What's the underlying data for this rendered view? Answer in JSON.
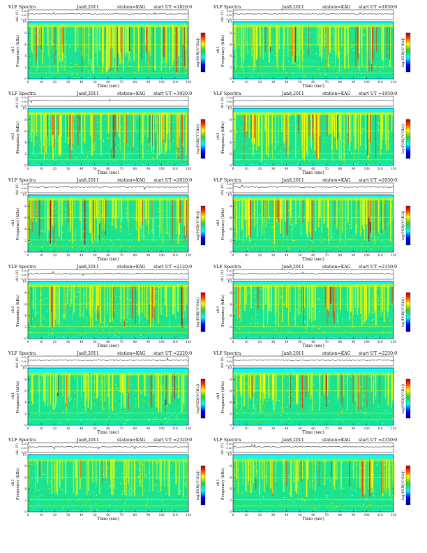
{
  "page": {
    "colors": {
      "background_low": "#00ffff",
      "background_mid": "#33cc33",
      "mid_high": "#ffff00",
      "high": "#ff3300",
      "peak": "#aa0000",
      "trace": "#000000"
    }
  },
  "chart_data": [
    {
      "type": "heatmap",
      "title": "VLF Spectra",
      "date": "Jan8,2011",
      "station": "station=KAG",
      "start_ut": "start UT =1820:0",
      "xlabel": "Time (sec)",
      "ylabel": "Frequency (kHz)",
      "ylabel_ch": "ch1",
      "trace_label": "ch1 (V)",
      "trace_ticks": [
        "0.20",
        "0.00",
        "-0.20"
      ],
      "colorbar_label": "log(PSD[(V²/Hz])",
      "xlim": [
        0,
        120
      ],
      "ylim": [
        0,
        10
      ],
      "x_ticks": [
        "0",
        "10",
        "20",
        "30",
        "40",
        "50",
        "60",
        "70",
        "80",
        "90",
        "100",
        "110",
        "120"
      ],
      "y_ticks": [
        "0",
        "2",
        "4",
        "6",
        "8",
        "10"
      ],
      "band_upper_khz": 9.5,
      "intensity": 0.8
    },
    {
      "type": "heatmap",
      "title": "VLF Spectra",
      "date": "Jan8,2011",
      "station": "station=KAG",
      "start_ut": "start UT =1850:0",
      "xlabel": "Time (sec)",
      "ylabel": "Frequency (kHz)",
      "ylabel_ch": "ch1",
      "trace_label": "ch1 (V)",
      "trace_ticks": [
        "0.20",
        "0.00",
        "-0.20"
      ],
      "colorbar_label": "log(PSD[(V²/Hz])",
      "xlim": [
        0,
        120
      ],
      "ylim": [
        0,
        10
      ],
      "x_ticks": [
        "0",
        "10",
        "20",
        "30",
        "40",
        "50",
        "60",
        "70",
        "80",
        "90",
        "100",
        "110",
        "120"
      ],
      "y_ticks": [
        "0",
        "2",
        "4",
        "6",
        "8",
        "10"
      ],
      "band_upper_khz": 9.5,
      "intensity": 0.8
    },
    {
      "type": "heatmap",
      "title": "VLF Spectra",
      "date": "Jan8,2011",
      "station": "station=KAG",
      "start_ut": "start UT =1920:0",
      "xlabel": "Time (sec)",
      "ylabel": "Frequency (kHz)",
      "ylabel_ch": "ch1",
      "trace_label": "ch1 (V)",
      "trace_ticks": [
        "0.20",
        "0.00",
        "-0.20"
      ],
      "colorbar_label": "log(PSD[(V²/Hz])",
      "xlim": [
        0,
        120
      ],
      "ylim": [
        0,
        10
      ],
      "x_ticks": [
        "0",
        "10",
        "20",
        "30",
        "40",
        "50",
        "60",
        "70",
        "80",
        "90",
        "100",
        "110",
        "120"
      ],
      "y_ticks": [
        "0",
        "2",
        "4",
        "6",
        "8",
        "10"
      ],
      "band_upper_khz": 9.3,
      "intensity": 0.85
    },
    {
      "type": "heatmap",
      "title": "VLF Spectra",
      "date": "Jan8,2011",
      "station": "station=KAG",
      "start_ut": "start UT =1950:0",
      "xlabel": "Time (sec)",
      "ylabel": "Frequency (kHz)",
      "ylabel_ch": "ch1",
      "trace_label": "ch1 (V)",
      "trace_ticks": [
        "0.20",
        "0.00",
        "-0.20"
      ],
      "colorbar_label": "log(PSD[(V²/Hz])",
      "xlim": [
        0,
        120
      ],
      "ylim": [
        0,
        10
      ],
      "x_ticks": [
        "0",
        "10",
        "20",
        "30",
        "40",
        "50",
        "60",
        "70",
        "80",
        "90",
        "100",
        "110",
        "120"
      ],
      "y_ticks": [
        "0",
        "2",
        "4",
        "6",
        "8",
        "10"
      ],
      "band_upper_khz": 9.3,
      "intensity": 0.85
    },
    {
      "type": "heatmap",
      "title": "VLF Spectra",
      "date": "Jan8,2011",
      "station": "station=KAG",
      "start_ut": "start UT =2020:0",
      "xlabel": "Time (sec)",
      "ylabel": "Frequency (kHz)",
      "ylabel_ch": "ch1",
      "trace_label": "ch1 (V)",
      "trace_ticks": [
        "0.20",
        "0.00",
        "-0.20"
      ],
      "colorbar_label": "log(PSD[(V²/Hz])",
      "xlim": [
        0,
        120
      ],
      "ylim": [
        0,
        10
      ],
      "x_ticks": [
        "0",
        "10",
        "20",
        "30",
        "40",
        "50",
        "60",
        "70",
        "80",
        "90",
        "100",
        "110",
        "120"
      ],
      "y_ticks": [
        "0",
        "2",
        "4",
        "6",
        "8",
        "10"
      ],
      "band_upper_khz": 9.5,
      "intensity": 0.7
    },
    {
      "type": "heatmap",
      "title": "VLF Spectra",
      "date": "Jan8,2011",
      "station": "station=KAG",
      "start_ut": "start UT =2050:0",
      "xlabel": "Time (sec)",
      "ylabel": "Frequency (kHz)",
      "ylabel_ch": "ch1",
      "trace_label": "ch1 (V)",
      "trace_ticks": [
        "0.20",
        "0.00",
        "-0.20"
      ],
      "colorbar_label": "log(PSD[(V²/Hz])",
      "xlim": [
        0,
        120
      ],
      "ylim": [
        0,
        10
      ],
      "x_ticks": [
        "0",
        "10",
        "20",
        "30",
        "40",
        "50",
        "60",
        "70",
        "80",
        "90",
        "100",
        "110",
        "120"
      ],
      "y_ticks": [
        "0",
        "2",
        "4",
        "6",
        "8",
        "10"
      ],
      "band_upper_khz": 9.5,
      "intensity": 0.7
    },
    {
      "type": "heatmap",
      "title": "VLF Spectra",
      "date": "Jan8,2011",
      "station": "station=KAG",
      "start_ut": "start UT =2120:0",
      "xlabel": "Time (sec)",
      "ylabel": "Frequency (kHz)",
      "ylabel_ch": "ch1",
      "trace_label": "ch1 (V)",
      "trace_ticks": [
        "0.20",
        "0.00",
        "-0.20"
      ],
      "colorbar_label": "log(PSD[(V²/Hz])",
      "xlim": [
        0,
        120
      ],
      "ylim": [
        0,
        10
      ],
      "x_ticks": [
        "0",
        "10",
        "20",
        "30",
        "40",
        "50",
        "60",
        "70",
        "80",
        "90",
        "100",
        "110",
        "120"
      ],
      "y_ticks": [
        "0",
        "2",
        "4",
        "6",
        "8",
        "10"
      ],
      "band_upper_khz": 9.5,
      "intensity": 0.55
    },
    {
      "type": "heatmap",
      "title": "VLF Spectra",
      "date": "Jan8,2011",
      "station": "station=KAG",
      "start_ut": "start UT =2150:0",
      "xlabel": "Time (sec)",
      "ylabel": "Frequency (kHz)",
      "ylabel_ch": "ch1",
      "trace_label": "ch1 (V)",
      "trace_ticks": [
        "0.20",
        "0.00",
        "-0.20"
      ],
      "colorbar_label": "log(PSD[(V²/Hz])",
      "xlim": [
        0,
        120
      ],
      "ylim": [
        0,
        10
      ],
      "x_ticks": [
        "0",
        "10",
        "20",
        "30",
        "40",
        "50",
        "60",
        "70",
        "80",
        "90",
        "100",
        "110",
        "120"
      ],
      "y_ticks": [
        "0",
        "2",
        "4",
        "6",
        "8",
        "10"
      ],
      "band_upper_khz": 9.5,
      "intensity": 0.55
    },
    {
      "type": "heatmap",
      "title": "VLF Spectra",
      "date": "Jan8,2011",
      "station": "station=KAG",
      "start_ut": "start UT =2220:0",
      "xlabel": "Time (sec)",
      "ylabel": "Frequency (kHz)",
      "ylabel_ch": "ch1",
      "trace_label": "ch1 (V)",
      "trace_ticks": [
        "0.20",
        "0.00",
        "-0.20"
      ],
      "colorbar_label": "log(PSD[(V²/Hz])",
      "xlim": [
        0,
        120
      ],
      "ylim": [
        0,
        10
      ],
      "x_ticks": [
        "0",
        "10",
        "20",
        "30",
        "40",
        "50",
        "60",
        "70",
        "80",
        "90",
        "100",
        "110",
        "120"
      ],
      "y_ticks": [
        "0",
        "2",
        "4",
        "6",
        "8",
        "10"
      ],
      "band_upper_khz": 9.2,
      "intensity": 0.45
    },
    {
      "type": "heatmap",
      "title": "VLF Spectra",
      "date": "Jan8,2011",
      "station": "station=KAG",
      "start_ut": "start UT =2250:0",
      "xlabel": "Time (sec)",
      "ylabel": "Frequency (kHz)",
      "ylabel_ch": "ch1",
      "trace_label": "ch1 (V)",
      "trace_ticks": [
        "0.20",
        "0.00",
        "-0.20"
      ],
      "colorbar_label": "log(PSD[(V²/Hz])",
      "xlim": [
        0,
        120
      ],
      "ylim": [
        0,
        10
      ],
      "x_ticks": [
        "0",
        "10",
        "20",
        "30",
        "40",
        "50",
        "60",
        "70",
        "80",
        "90",
        "100",
        "110",
        "120"
      ],
      "y_ticks": [
        "0",
        "2",
        "4",
        "6",
        "8",
        "10"
      ],
      "band_upper_khz": 9.2,
      "intensity": 0.45
    },
    {
      "type": "heatmap",
      "title": "VLF Spectra",
      "date": "Jan8,2011",
      "station": "station=KAG",
      "start_ut": "start UT =2320:0",
      "xlabel": "Time (sec)",
      "ylabel": "Frequency (kHz)",
      "ylabel_ch": "ch1",
      "trace_label": "ch1 (V)",
      "trace_ticks": [
        "0.20",
        "0.00",
        "-0.20"
      ],
      "colorbar_label": "log(PSD[(V²/Hz])",
      "xlim": [
        0,
        120
      ],
      "ylim": [
        0,
        10
      ],
      "x_ticks": [
        "0",
        "10",
        "20",
        "30",
        "40",
        "50",
        "60",
        "70",
        "80",
        "90",
        "100",
        "110",
        "120"
      ],
      "y_ticks": [
        "0",
        "2",
        "4",
        "6",
        "8",
        "10"
      ],
      "band_upper_khz": 9.3,
      "intensity": 0.35
    },
    {
      "type": "heatmap",
      "title": "VLF Spectra",
      "date": "Jan8,2011",
      "station": "station=KAG",
      "start_ut": "start UT =2350:0",
      "xlabel": "Time (sec)",
      "ylabel": "Frequency (kHz)",
      "ylabel_ch": "ch1",
      "trace_label": "ch1 (V)",
      "trace_ticks": [
        "0.20",
        "0.00",
        "-0.20"
      ],
      "colorbar_label": "log(PSD[(V²/Hz])",
      "xlim": [
        0,
        120
      ],
      "ylim": [
        0,
        10
      ],
      "x_ticks": [
        "0",
        "10",
        "20",
        "30",
        "40",
        "50",
        "60",
        "70",
        "80",
        "90",
        "100",
        "110",
        "120"
      ],
      "y_ticks": [
        "0",
        "2",
        "4",
        "6",
        "8",
        "10"
      ],
      "band_upper_khz": 9.3,
      "intensity": 0.35
    }
  ]
}
